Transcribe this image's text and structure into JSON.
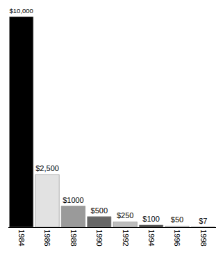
{
  "chart_data": {
    "type": "bar",
    "categories": [
      "1984",
      "1986",
      "1988",
      "1990",
      "1992",
      "1994",
      "1996",
      "1998"
    ],
    "values": [
      10000,
      2500,
      1000,
      500,
      250,
      100,
      50,
      7
    ],
    "value_labels": [
      "$10,000",
      "$2,500",
      "$1000",
      "$500",
      "$250",
      "$100",
      "$50",
      "$7"
    ],
    "colors": [
      "#000000",
      "#e2e2e2",
      "#9a9a9a",
      "#666666",
      "#bdbdbd",
      "#444444",
      "#d8d8d8",
      "#eeeeee"
    ],
    "ylim": [
      0,
      10000
    ],
    "grid": false,
    "data_labels": true,
    "tick_labels": "x"
  }
}
